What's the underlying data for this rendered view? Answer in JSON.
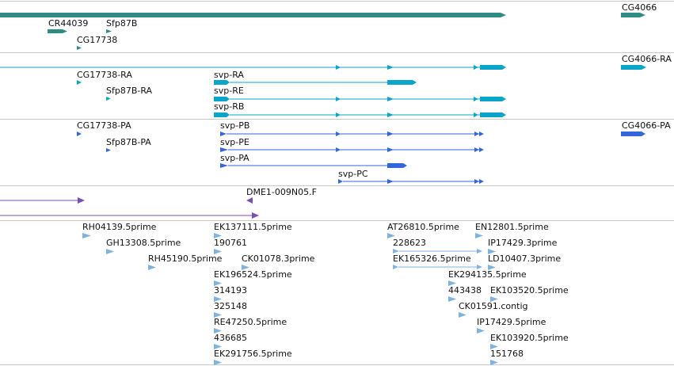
{
  "colors": {
    "divider": "#c8c8c8",
    "gene": "#2e8b86",
    "transcript": "#0aa5c8",
    "protein": "#3366dd",
    "clone": "#7a4fb3",
    "est": "#7fb3dd"
  },
  "tracks": {
    "genes": {
      "labels": [
        "CR44039",
        "Sfp87B",
        "CG17738",
        "CG4066"
      ]
    },
    "transcripts": {
      "labels": [
        "CG17738-RA",
        "Sfp87B-RA",
        "svp-RA",
        "svp-RE",
        "svp-RB",
        "CG4066-RA"
      ]
    },
    "proteins": {
      "labels": [
        "CG17738-PA",
        "Sfp87B-PA",
        "svp-PB",
        "svp-PE",
        "svp-PA",
        "svp-PC",
        "CG4066-PA"
      ]
    },
    "clones": {
      "labels": [
        "DME1-009N05.F"
      ]
    },
    "ests": {
      "labels": [
        "RH04139.5prime",
        "GH13308.5prime",
        "RH45190.5prime",
        "EK137111.5prime",
        "190761",
        "CK01078.3prime",
        "EK196524.5prime",
        "314193",
        "325148",
        "RE47250.5prime",
        "436685",
        "EK291756.5prime",
        "AT26810.5prime",
        "228623",
        "EK165326.5prime",
        "EN12801.5prime",
        "IP17429.3prime",
        "LD10407.3prime",
        "EK294135.5prime",
        "443438",
        "EK103520.5prime",
        "CK01591.contig",
        "IP17429.5prime",
        "EK103920.5prime",
        "151768"
      ]
    }
  }
}
